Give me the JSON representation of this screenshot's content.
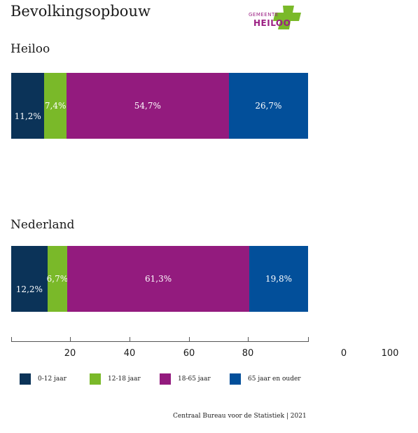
{
  "header": {
    "title": "Bevolkingsopbouw",
    "logo_small": "GEMEENTE",
    "logo_big": "HEILOO"
  },
  "colors": {
    "age_0_12": "#0b3358",
    "age_12_18": "#7ab929",
    "age_18_65": "#931b7e",
    "age_65_plus": "#024f9a",
    "logo_green": "#7ab929",
    "logo_purple": "#9b1f83"
  },
  "chart_data": {
    "type": "bar",
    "orientation": "horizontal",
    "stacked": true,
    "categories": [
      "Heiloo",
      "Nederland"
    ],
    "series": [
      {
        "name": "0-12 jaar",
        "values": [
          11.2,
          12.2
        ],
        "labels": [
          "11,2%",
          "12,2%"
        ]
      },
      {
        "name": "12-18 jaar",
        "values": [
          7.4,
          6.7
        ],
        "labels": [
          "7,4%",
          "6,7%"
        ]
      },
      {
        "name": "18-65 jaar",
        "values": [
          54.7,
          61.3
        ],
        "labels": [
          "54,7%",
          "61,3%"
        ]
      },
      {
        "name": "65 jaar  en ouder",
        "values": [
          26.7,
          19.8
        ],
        "labels": [
          "26,7%",
          "19,8%"
        ]
      }
    ],
    "xlim": [
      0,
      100
    ],
    "xticks": [
      "20",
      "40",
      "60",
      "80",
      "0",
      "100"
    ],
    "grid": false,
    "legend_position": "bottom"
  },
  "footer": {
    "source": "Centraal Bureau voor de Statistiek | 2021"
  }
}
